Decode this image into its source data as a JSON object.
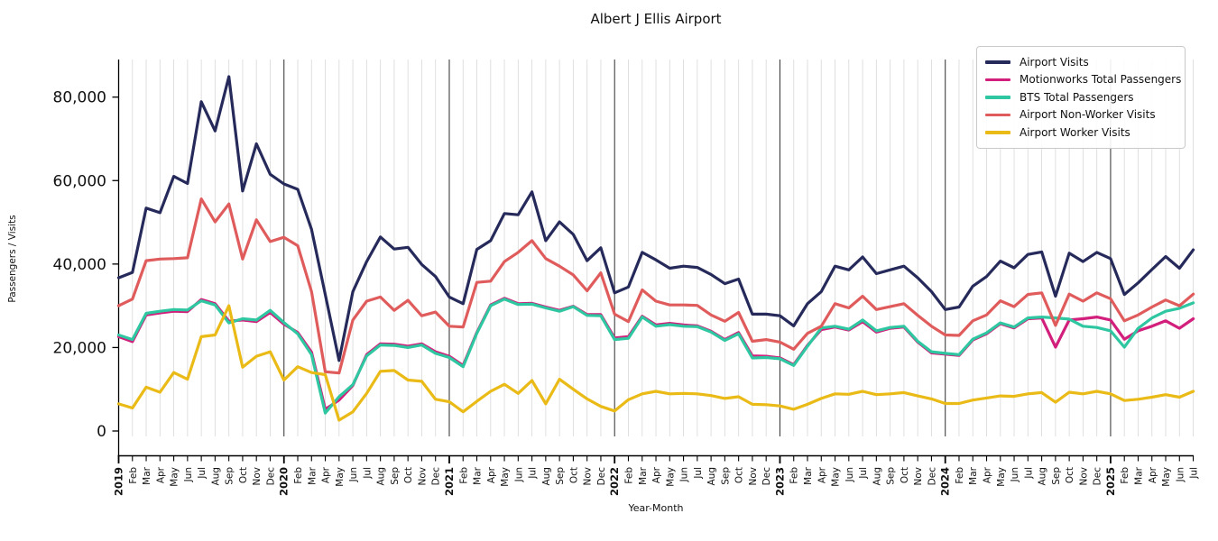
{
  "title": "Albert J Ellis Airport",
  "axes": {
    "xlabel": "Year-Month",
    "ylabel": "Passengers / Visits"
  },
  "chart_data": {
    "type": "line",
    "title": "Albert J Ellis Airport",
    "xlabel": "Year-Month",
    "ylabel": "Passengers / Visits",
    "ylim": [
      0,
      88000
    ],
    "yticks": [
      0,
      20000,
      40000,
      60000,
      80000
    ],
    "grid": "light vertical gridline per month; dark vertical line at each January",
    "legend_position": "upper right",
    "x_tick_labels": [
      "2019",
      "Feb",
      "Mar",
      "Apr",
      "May",
      "Jun",
      "Jul",
      "Aug",
      "Sep",
      "Oct",
      "Nov",
      "Dec",
      "2020",
      "Feb",
      "Mar",
      "Apr",
      "May",
      "Jun",
      "Jul",
      "Aug",
      "Sep",
      "Oct",
      "Nov",
      "Dec",
      "2021",
      "Feb",
      "Mar",
      "Apr",
      "May",
      "Jun",
      "Jul",
      "Aug",
      "Sep",
      "Oct",
      "Nov",
      "Dec",
      "2022",
      "Feb",
      "Mar",
      "Apr",
      "May",
      "Jun",
      "Jul",
      "Aug",
      "Sep",
      "Oct",
      "Nov",
      "Dec",
      "2023",
      "Feb",
      "Mar",
      "Apr",
      "May",
      "Jun",
      "Jul",
      "Aug",
      "Sep",
      "Oct",
      "Nov",
      "Dec",
      "2024",
      "Feb",
      "Mar",
      "Apr",
      "May",
      "Jun",
      "Jul",
      "Aug",
      "Sep",
      "Oct",
      "Nov",
      "Dec",
      "2025",
      "Feb",
      "Mar",
      "Apr",
      "May",
      "Jun",
      "Jul"
    ],
    "series": [
      {
        "name": "Airport Visits",
        "color": "#262a5b",
        "values": [
          36700,
          38000,
          53400,
          52300,
          61000,
          59300,
          78900,
          71900,
          84900,
          57500,
          68800,
          61500,
          59200,
          57900,
          48300,
          32700,
          16900,
          33400,
          40600,
          46500,
          43600,
          44000,
          39900,
          37000,
          32100,
          30500,
          43500,
          45600,
          52100,
          51800,
          57300,
          45600,
          50100,
          47100,
          40800,
          43900,
          33100,
          34500,
          42800,
          41000,
          39000,
          39500,
          39200,
          37500,
          35300,
          36400,
          28000,
          28000,
          27600,
          25200,
          30500,
          33400,
          39500,
          38600,
          41700,
          37700,
          38600,
          39500,
          36700,
          33400,
          29100,
          29700,
          34700,
          37000,
          40700,
          39100,
          42300,
          42900,
          32300,
          42600,
          40600,
          42800,
          41300,
          32700,
          35500,
          38700,
          41800,
          39000,
          43400
        ]
      },
      {
        "name": "Motionworks Total Passengers",
        "color": "#d21f7c",
        "values": [
          22600,
          21400,
          27800,
          28300,
          28700,
          28600,
          31500,
          30500,
          26300,
          26600,
          26200,
          28400,
          25600,
          23600,
          18900,
          5200,
          7400,
          10900,
          18300,
          20900,
          20800,
          20300,
          20900,
          19000,
          17900,
          15700,
          23600,
          30200,
          31800,
          30500,
          30600,
          29700,
          28900,
          29900,
          27900,
          27900,
          22300,
          22600,
          27500,
          25400,
          25800,
          25400,
          25200,
          23900,
          21900,
          23600,
          18000,
          17900,
          17500,
          15900,
          20500,
          24300,
          24900,
          24200,
          26200,
          23700,
          24600,
          24900,
          21300,
          18700,
          18400,
          18100,
          21800,
          23300,
          25700,
          24700,
          26900,
          27100,
          20100,
          26600,
          26900,
          27300,
          26600,
          22000,
          24000,
          25100,
          26400,
          24600,
          26900
        ]
      },
      {
        "name": "BTS Total Passengers",
        "color": "#2fc7a1",
        "values": [
          23000,
          21900,
          28200,
          28700,
          29100,
          29000,
          31200,
          30200,
          25900,
          26900,
          26600,
          28900,
          26000,
          23300,
          18300,
          4300,
          8200,
          11100,
          18000,
          20600,
          20500,
          20000,
          20600,
          18600,
          17600,
          15400,
          23400,
          30000,
          31600,
          30300,
          30400,
          29500,
          28700,
          29800,
          27700,
          27600,
          21900,
          22200,
          27300,
          25100,
          25500,
          25100,
          25000,
          23700,
          21700,
          23300,
          17500,
          17600,
          17300,
          15700,
          20300,
          24700,
          25100,
          24400,
          26600,
          24000,
          24800,
          25100,
          21500,
          19000,
          18600,
          18300,
          22000,
          23500,
          25900,
          24900,
          27100,
          27300,
          27100,
          26800,
          25100,
          24800,
          24000,
          20100,
          24600,
          27100,
          28700,
          29400,
          30700
        ]
      },
      {
        "name": "Airport Non-Worker Visits",
        "color": "#e05c5c",
        "values": [
          30000,
          31600,
          40800,
          41200,
          41300,
          41500,
          55600,
          50100,
          54400,
          41200,
          50600,
          45400,
          46400,
          44400,
          33400,
          14200,
          13900,
          26600,
          31100,
          32100,
          28900,
          31300,
          27600,
          28500,
          25100,
          24900,
          35600,
          35900,
          40600,
          42800,
          45600,
          41300,
          39500,
          37400,
          33600,
          37900,
          28000,
          26200,
          33800,
          31100,
          30200,
          30200,
          30100,
          27800,
          26300,
          28400,
          21500,
          21900,
          21300,
          19600,
          23400,
          25100,
          30500,
          29500,
          32300,
          29100,
          29800,
          30500,
          27700,
          25100,
          23000,
          22900,
          26400,
          27800,
          31200,
          29800,
          32700,
          33100,
          25300,
          32800,
          31100,
          33100,
          31700,
          26400,
          27800,
          29700,
          31400,
          30000,
          32800
        ]
      },
      {
        "name": "Airport Worker Visits",
        "color": "#eaba17",
        "values": [
          6500,
          5500,
          10500,
          9300,
          14000,
          12400,
          22600,
          23000,
          30000,
          15300,
          17900,
          19000,
          12200,
          15400,
          14000,
          13500,
          2600,
          4600,
          9000,
          14300,
          14500,
          12200,
          11900,
          7600,
          7000,
          4600,
          7100,
          9500,
          11200,
          9000,
          12100,
          6500,
          12400,
          10000,
          7700,
          5900,
          4800,
          7500,
          8900,
          9500,
          8900,
          9000,
          8900,
          8500,
          7800,
          8200,
          6400,
          6300,
          6000,
          5200,
          6400,
          7800,
          8900,
          8800,
          9500,
          8700,
          8900,
          9200,
          8400,
          7700,
          6600,
          6600,
          7400,
          7900,
          8400,
          8300,
          8900,
          9200,
          6900,
          9300,
          8900,
          9500,
          8900,
          7300,
          7600,
          8100,
          8700,
          8100,
          9500
        ]
      }
    ]
  }
}
